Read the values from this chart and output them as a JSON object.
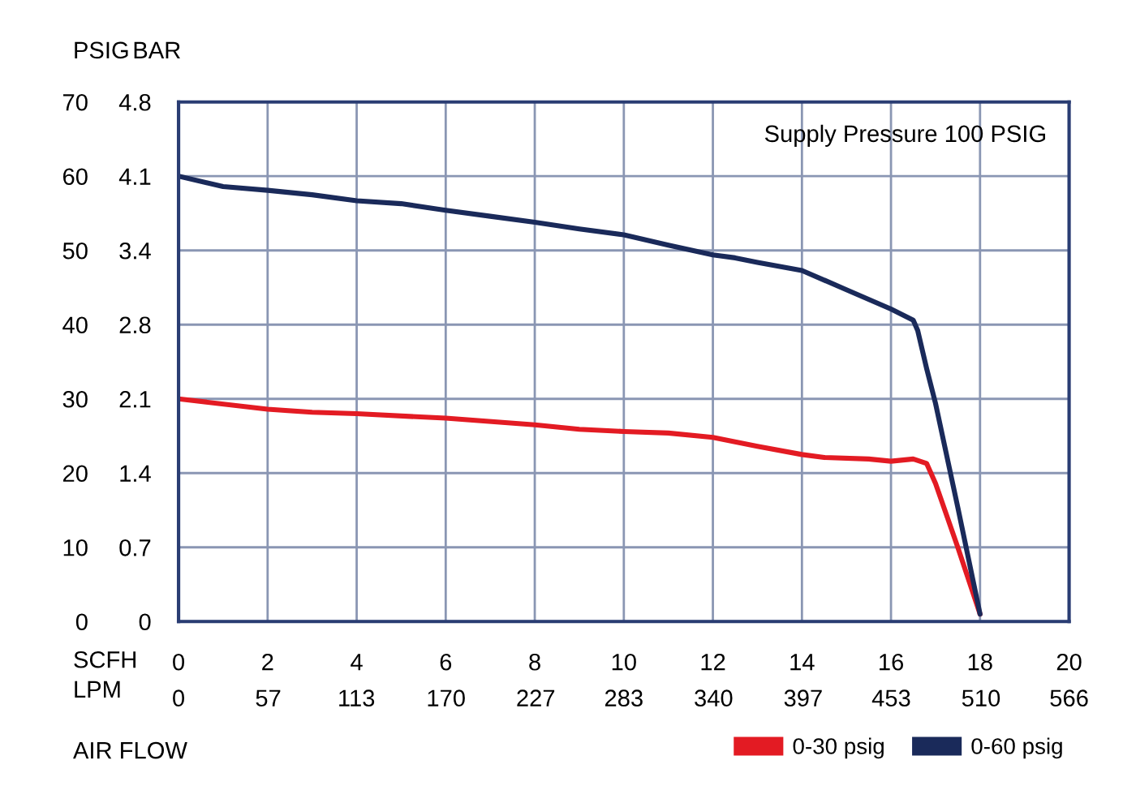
{
  "chart_data": {
    "type": "line",
    "xlabel": "AIR FLOW",
    "ylabel": "PSIG",
    "y2label": "BAR",
    "x2label": "LPM",
    "annotations": [
      "Supply Pressure 100 PSIG",
      "SCFH"
    ],
    "xlim": [
      0,
      20
    ],
    "xticks": [
      0,
      2,
      4,
      6,
      8,
      10,
      12,
      14,
      16,
      18,
      20
    ],
    "ylim": [
      0,
      70
    ],
    "yticks": [
      0,
      10,
      20,
      30,
      40,
      50,
      60,
      70
    ],
    "y2lim": [
      0,
      4.826
    ],
    "y2ticks": [
      {
        "value": 0,
        "label": "0"
      },
      {
        "value": 0.689,
        "label": "0.7"
      },
      {
        "value": 1.379,
        "label": "1.4"
      },
      {
        "value": 2.068,
        "label": "2.1"
      },
      {
        "value": 2.758,
        "label": "2.8"
      },
      {
        "value": 3.447,
        "label": "3.4"
      },
      {
        "value": 4.137,
        "label": "4.1"
      },
      {
        "value": 4.826,
        "label": "4.8"
      }
    ],
    "x2lim": [
      0,
      566
    ],
    "x2ticks": [
      0,
      57,
      113,
      170,
      227,
      283,
      340,
      397,
      453,
      510,
      566
    ],
    "grid": true,
    "legend": "bottom right",
    "marker": "none",
    "line_style": "solid",
    "series": [
      {
        "name": "0-30 psig",
        "color": "#e31b23",
        "x": [
          0,
          2,
          3,
          4,
          6,
          8,
          9,
          10,
          11,
          12,
          13,
          14,
          14.5,
          15.5,
          16,
          16.5,
          16.8,
          17,
          17.5,
          18
        ],
        "values": [
          30.0,
          28.6,
          28.2,
          28.0,
          27.4,
          26.5,
          25.9,
          25.6,
          25.4,
          24.8,
          23.6,
          22.5,
          22.1,
          21.9,
          21.6,
          21.9,
          21.3,
          18.6,
          10.0,
          1.0
        ]
      },
      {
        "name": "0-60 psig",
        "color": "#1a2a5a",
        "x": [
          0,
          1,
          2,
          3,
          4,
          5,
          6,
          7,
          8,
          9,
          10,
          11,
          12,
          12.5,
          13,
          14,
          15,
          16,
          16.5,
          16.6,
          16.8,
          17,
          17.5,
          18
        ],
        "values": [
          60.0,
          58.6,
          58.1,
          57.5,
          56.7,
          56.3,
          55.4,
          54.6,
          53.8,
          52.9,
          52.1,
          50.7,
          49.4,
          49.0,
          48.4,
          47.3,
          44.7,
          42.1,
          40.6,
          39.2,
          34.1,
          29.4,
          15.4,
          1.0
        ]
      }
    ]
  }
}
